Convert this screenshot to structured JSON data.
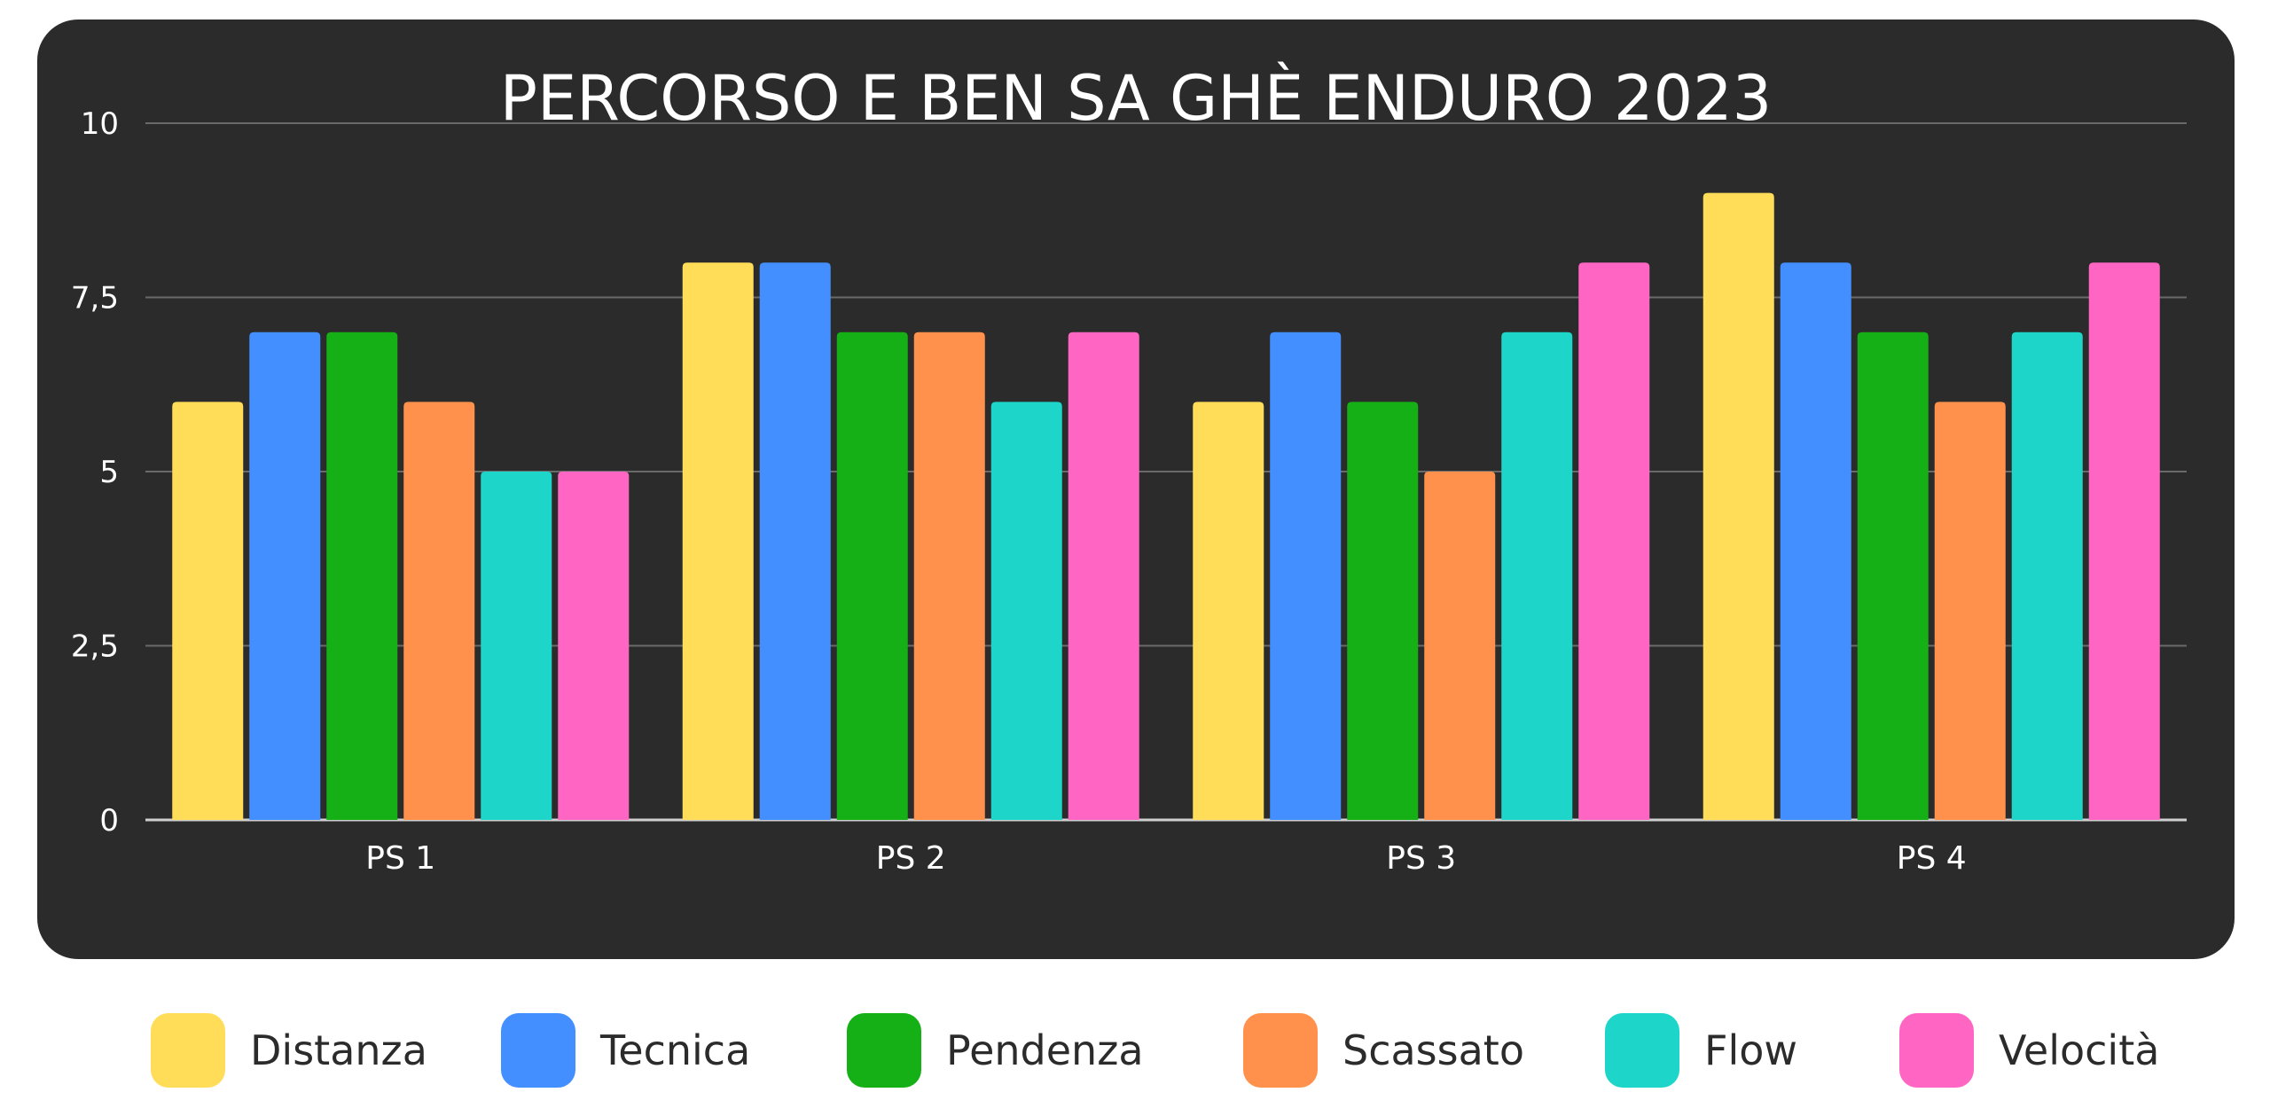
{
  "chart_data": {
    "type": "bar",
    "title": "PERCORSO E BEN SA GHÈ ENDURO 2023",
    "categories": [
      "PS 1",
      "PS 2",
      "PS 3",
      "PS 4"
    ],
    "series": [
      {
        "name": "Distanza",
        "color": "#ffdd59",
        "values": [
          6,
          8,
          6,
          9
        ]
      },
      {
        "name": "Tecnica",
        "color": "#448fff",
        "values": [
          7,
          8,
          7,
          8
        ]
      },
      {
        "name": "Pendenza",
        "color": "#15b015",
        "values": [
          7,
          7,
          6,
          7
        ]
      },
      {
        "name": "Scassato",
        "color": "#ff914d",
        "values": [
          6,
          7,
          5,
          6
        ]
      },
      {
        "name": "Flow",
        "color": "#1dd5c8",
        "values": [
          5,
          6,
          7,
          7
        ]
      },
      {
        "name": "Velocità",
        "color": "#ff66c4",
        "values": [
          5,
          7,
          8,
          8
        ]
      }
    ],
    "ylim": [
      0,
      10
    ],
    "yticks": [
      "0",
      "2,5",
      "5",
      "7,5",
      "10"
    ],
    "ytick_values": [
      0,
      2.5,
      5,
      7.5,
      10
    ],
    "grid": true,
    "legend_position": "bottom",
    "background": "#2b2b2b"
  }
}
